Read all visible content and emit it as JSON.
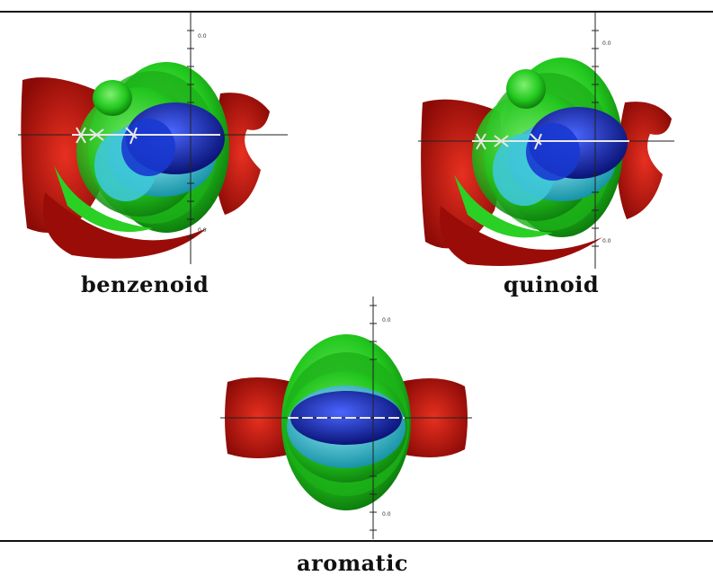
{
  "figure": {
    "panels": [
      {
        "id": "benzenoid",
        "caption": "benzenoid",
        "y_tick_top": "0.0",
        "y_tick_bottom": "0.0"
      },
      {
        "id": "quinoid",
        "caption": "quinoid",
        "y_tick_top": "0.0",
        "y_tick_bottom": "0.0"
      },
      {
        "id": "aromatic",
        "caption": "aromatic",
        "y_tick_top": "0.0",
        "y_tick_bottom": "0.0"
      }
    ],
    "colors": {
      "red_lobe": "#c81008",
      "green_lobe": "#22c81e",
      "cyan_lobe": "#28c8d8",
      "blue_core": "#1428c8",
      "molecule": "#e0e0e0",
      "axis": "#222222"
    }
  }
}
